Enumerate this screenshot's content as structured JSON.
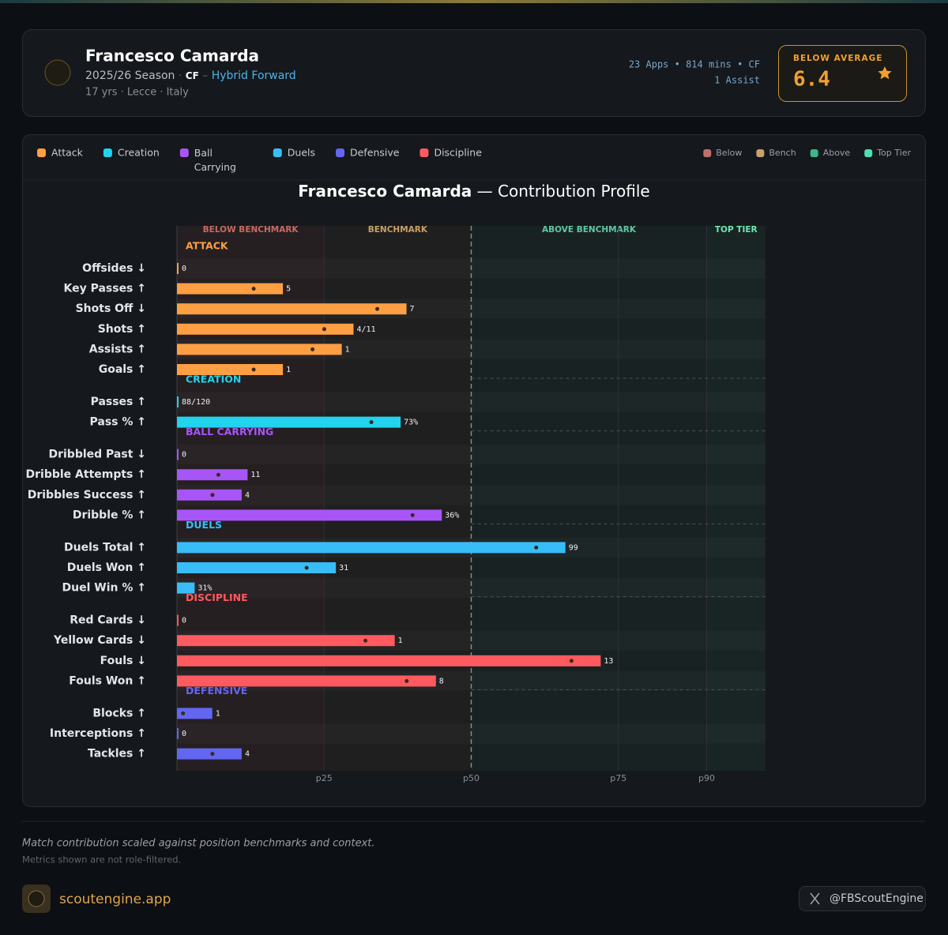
{
  "header": {
    "name": "Francesco Camarda",
    "season": "2025/26 Season",
    "season_sep": "·",
    "position": "CF",
    "role_sep": "–",
    "role": "Hybrid Forward",
    "bio": "17 yrs · Lecce · Italy",
    "stats_line1": "23 Apps • 814 mins • CF",
    "stats_line2": "1 Assist",
    "rating_label": "BELOW AVERAGE",
    "rating": 6.4
  },
  "chart_data": {
    "type": "bar",
    "orientation": "horizontal",
    "title": "Francesco Camarda",
    "title_separator": "—",
    "subtitle": "Contribution Profile",
    "legend": [
      {
        "name": "Attack",
        "color": "#ff9f43"
      },
      {
        "name": "Creation",
        "color": "#22d3ee"
      },
      {
        "name": "Ball Carrying",
        "color": "#a855f7"
      },
      {
        "name": "Duels",
        "color": "#38bdf8"
      },
      {
        "name": "Defensive",
        "color": "#6366f1"
      },
      {
        "name": "Discipline",
        "color": "#ff5a5f"
      }
    ],
    "zone_legend": [
      {
        "name": "Below",
        "color": "#c0706b"
      },
      {
        "name": "Bench",
        "color": "#c8a26a"
      },
      {
        "name": "Above",
        "color": "#3cb88a"
      },
      {
        "name": "Top Tier",
        "color": "#4ee0b0"
      }
    ],
    "zones": [
      {
        "label": "BELOW BENCHMARK",
        "from": 0,
        "to": 25,
        "color": "#c86a5f"
      },
      {
        "label": "BENCHMARK",
        "from": 25,
        "to": 50,
        "color": "#c8a060"
      },
      {
        "label": "ABOVE BENCHMARK",
        "from": 50,
        "to": 90,
        "color": "#5fc8a0"
      },
      {
        "label": "TOP TIER",
        "from": 90,
        "to": 100,
        "color": "#6ee8b0"
      }
    ],
    "xlim": [
      0,
      100
    ],
    "xticks": [
      {
        "value": 25,
        "label": "p25"
      },
      {
        "value": 50,
        "label": "p50"
      },
      {
        "value": 75,
        "label": "p75"
      },
      {
        "value": 90,
        "label": "p90"
      }
    ],
    "series": [
      {
        "name": "ATTACK",
        "color": "#ff9f43",
        "categories": [
          "Offsides ↓",
          "Key Passes ↑",
          "Shots Off ↓",
          "Shots ↑",
          "Assists ↑",
          "Goals ↑"
        ],
        "values": [
          0,
          18,
          39,
          30,
          28,
          18
        ],
        "stats": [
          "0",
          "5",
          "7",
          "4/11",
          "1",
          "1"
        ]
      },
      {
        "name": "CREATION",
        "color": "#22d3ee",
        "categories": [
          "Passes ↑",
          "Pass % ↑"
        ],
        "values": [
          0,
          38
        ],
        "stats": [
          "88/120",
          "73%"
        ]
      },
      {
        "name": "BALL CARRYING",
        "color": "#a855f7",
        "categories": [
          "Dribbled Past ↓",
          "Dribble Attempts ↑",
          "Dribbles Success ↑",
          "Dribble % ↑"
        ],
        "values": [
          0,
          12,
          11,
          45
        ],
        "stats": [
          "0",
          "11",
          "4",
          "36%"
        ]
      },
      {
        "name": "DUELS",
        "color": "#38bdf8",
        "categories": [
          "Duels Total ↑",
          "Duels Won ↑",
          "Duel Win % ↑"
        ],
        "values": [
          66,
          27,
          3
        ],
        "stats": [
          "99",
          "31",
          "31%"
        ]
      },
      {
        "name": "DISCIPLINE",
        "color": "#ff5a5f",
        "categories": [
          "Red Cards ↓",
          "Yellow Cards ↓",
          "Fouls ↓",
          "Fouls Won ↑"
        ],
        "values": [
          0,
          37,
          72,
          44
        ],
        "stats": [
          "0",
          "1",
          "13",
          "8"
        ]
      },
      {
        "name": "DEFENSIVE",
        "color": "#6366f1",
        "categories": [
          "Blocks ↑",
          "Interceptions ↑",
          "Tackles ↑"
        ],
        "values": [
          6,
          0,
          11
        ],
        "stats": [
          "1",
          "0",
          "4"
        ]
      }
    ]
  },
  "footer": {
    "note": "Match contribution scaled against position benchmarks and context.",
    "subnote": "Metrics shown are not role-filtered.",
    "site": "scoutengine.app",
    "handle": "@FBScoutEngine"
  }
}
